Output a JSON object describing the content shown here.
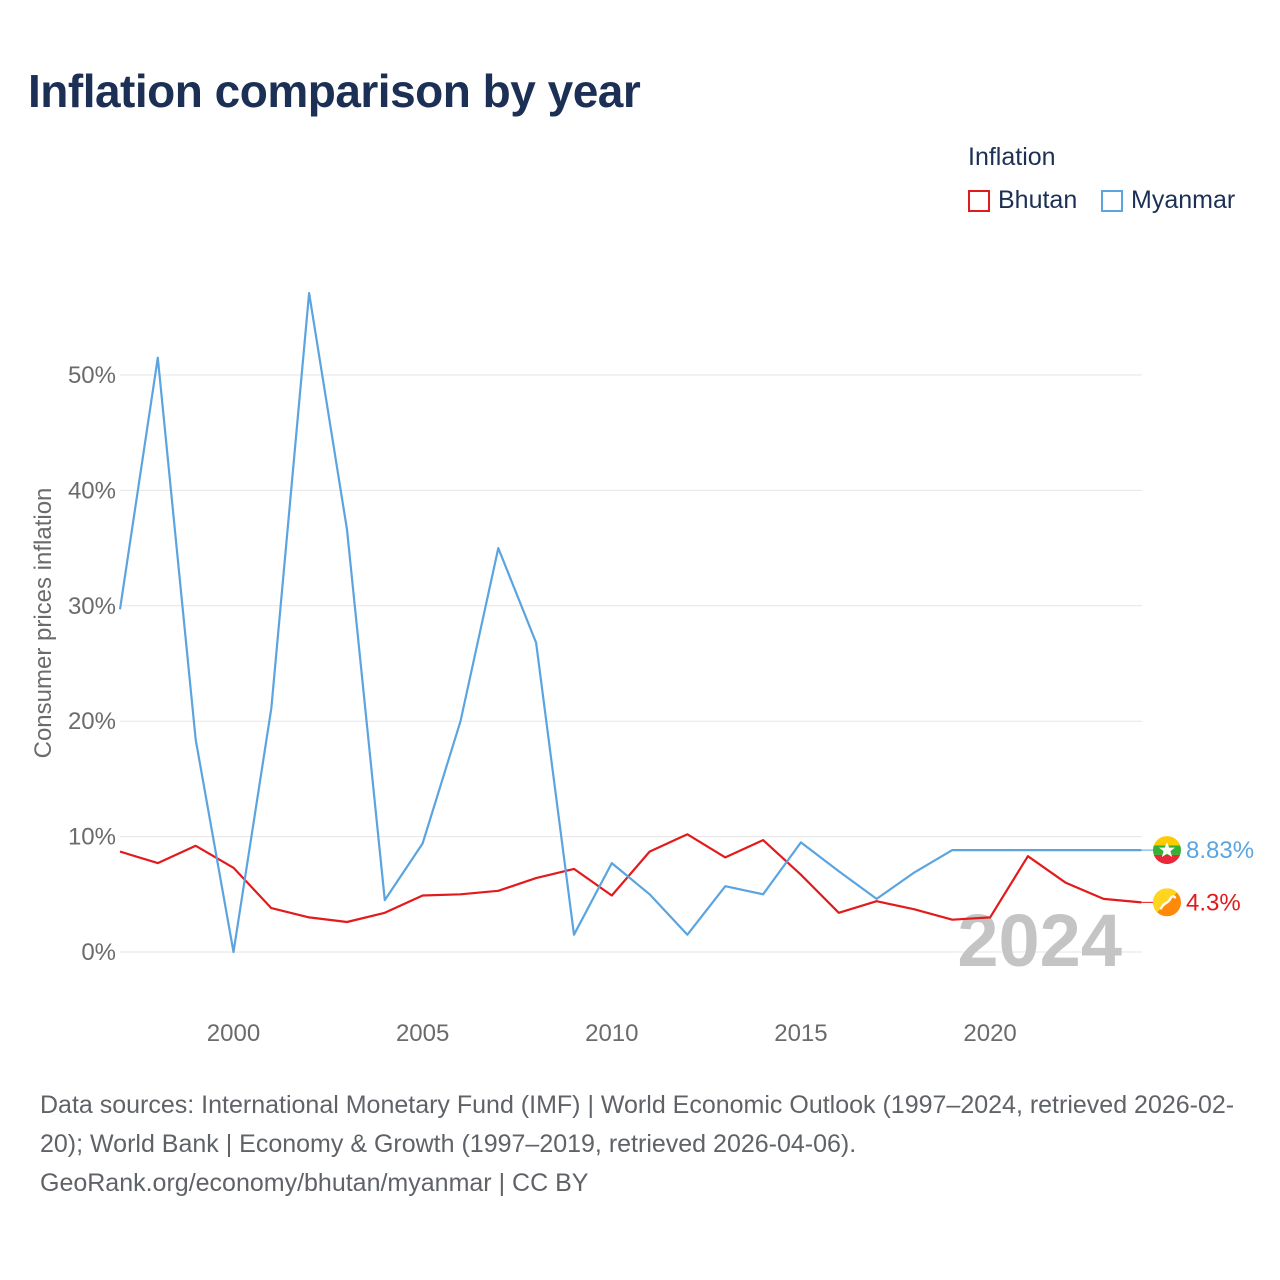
{
  "title": "Inflation comparison by year",
  "legend": {
    "title": "Inflation",
    "items": [
      {
        "label": "Bhutan",
        "color": "#e31a1c"
      },
      {
        "label": "Myanmar",
        "color": "#5ba4e0"
      }
    ]
  },
  "chart_data": {
    "type": "line",
    "title": "Inflation comparison by year",
    "xlabel": "",
    "ylabel": "Consumer prices inflation",
    "xlim": [
      1997,
      2024
    ],
    "ylim": [
      -5,
      60
    ],
    "x_ticks": [
      "2000",
      "2005",
      "2010",
      "2015",
      "2020"
    ],
    "y_ticks": [
      "0%",
      "10%",
      "20%",
      "30%",
      "40%",
      "50%"
    ],
    "y_tick_values": [
      0,
      10,
      20,
      30,
      40,
      50
    ],
    "x": [
      1997,
      1998,
      1999,
      2000,
      2001,
      2002,
      2003,
      2004,
      2005,
      2006,
      2007,
      2008,
      2009,
      2010,
      2011,
      2012,
      2013,
      2014,
      2015,
      2016,
      2017,
      2018,
      2019,
      2020,
      2021,
      2022,
      2023,
      2024
    ],
    "series": [
      {
        "name": "Bhutan",
        "color": "#e31a1c",
        "values": [
          8.7,
          7.7,
          9.2,
          7.3,
          3.8,
          3.0,
          2.6,
          3.4,
          4.9,
          5.0,
          5.3,
          6.4,
          7.2,
          4.9,
          8.7,
          10.2,
          8.2,
          9.7,
          6.7,
          3.4,
          4.4,
          3.7,
          2.8,
          3.0,
          8.3,
          6.0,
          4.6,
          4.3
        ],
        "end_label": "4.3%",
        "marker_icon": "bhutan-flag-icon"
      },
      {
        "name": "Myanmar",
        "color": "#5ba4e0",
        "values": [
          29.7,
          51.5,
          18.4,
          0.0,
          21.1,
          57.1,
          36.6,
          4.5,
          9.4,
          20.0,
          35.0,
          26.8,
          1.5,
          7.7,
          5.0,
          1.5,
          5.7,
          5.0,
          9.5,
          7.0,
          4.6,
          6.9,
          8.83,
          8.83,
          8.83,
          8.83,
          8.83,
          8.83
        ],
        "end_label": "8.83%",
        "marker_icon": "myanmar-flag-icon"
      }
    ],
    "year_watermark": "2024"
  },
  "footer": {
    "sources": "Data sources: International Monetary Fund (IMF) | World Economic Outlook (1997–2024, retrieved 2026-02-20); World Bank | Economy & Growth (1997–2019, retrieved 2026-04-06).",
    "credit": "GeoRank.org/economy/bhutan/myanmar | CC BY"
  }
}
